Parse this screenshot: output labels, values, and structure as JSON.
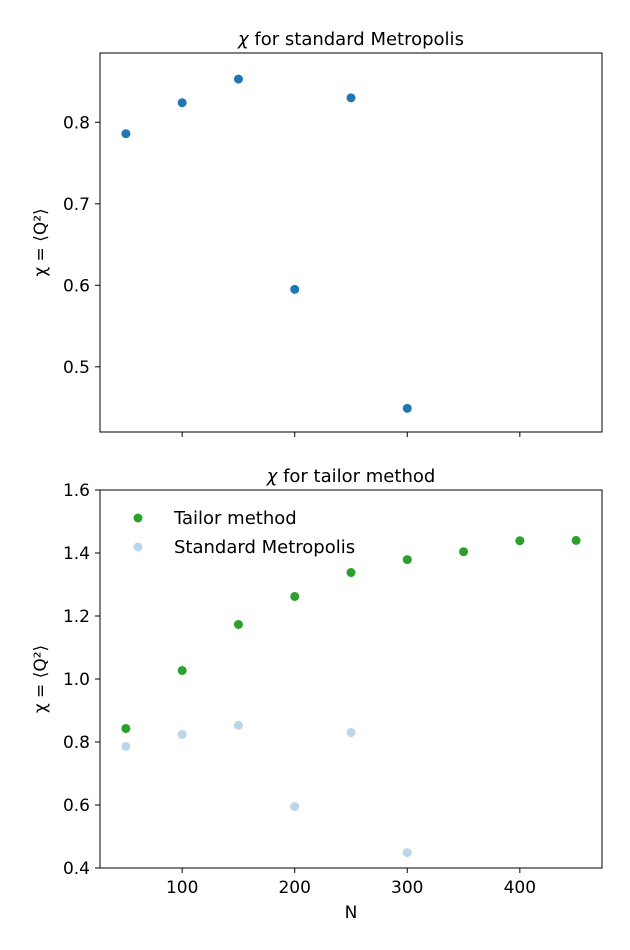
{
  "chart_data": [
    {
      "type": "scatter",
      "title": "χ for standard Metropolis",
      "title_italic_symbol": "χ",
      "title_rest": " for standard Metropolis",
      "xlabel": "",
      "ylabel": "χ = ⟨Q²⟩",
      "xlim": [
        27,
        473
      ],
      "ylim": [
        0.42,
        0.885
      ],
      "xticks": [
        100,
        200,
        300,
        400
      ],
      "xtick_labels_visible": false,
      "yticks": [
        0.5,
        0.6,
        0.7,
        0.8
      ],
      "ytick_labels": [
        "0.5",
        "0.6",
        "0.7",
        "0.8"
      ],
      "grid": false,
      "series": [
        {
          "color": "#1f77b4",
          "alpha": 1,
          "x": [
            50,
            100,
            150,
            200,
            250,
            300
          ],
          "y": [
            0.786,
            0.824,
            0.853,
            0.595,
            0.83,
            0.449
          ]
        }
      ]
    },
    {
      "type": "scatter",
      "title": "χ for tailor method",
      "title_italic_symbol": "χ",
      "title_rest": " for tailor method",
      "xlabel": "N",
      "ylabel": "χ = ⟨Q²⟩",
      "xlim": [
        27,
        473
      ],
      "ylim": [
        0.4,
        1.6
      ],
      "xticks": [
        100,
        200,
        300,
        400
      ],
      "xtick_labels": [
        "100",
        "200",
        "300",
        "400"
      ],
      "xtick_labels_visible": true,
      "yticks": [
        0.4,
        0.6,
        0.8,
        1.0,
        1.2,
        1.4,
        1.6
      ],
      "ytick_labels": [
        "0.4",
        "0.6",
        "0.8",
        "1.0",
        "1.2",
        "1.4",
        "1.6"
      ],
      "grid": false,
      "legend_position": "top-left",
      "series": [
        {
          "name": "Tailor method",
          "color": "#2ca02c",
          "alpha": 1,
          "x": [
            50,
            100,
            150,
            200,
            250,
            300,
            350,
            400,
            450
          ],
          "y": [
            0.843,
            1.027,
            1.173,
            1.262,
            1.338,
            1.379,
            1.404,
            1.439,
            1.44
          ]
        },
        {
          "name": "Standard Metropolis",
          "color": "#1f77b4",
          "alpha": 0.3,
          "x": [
            50,
            100,
            150,
            200,
            250,
            300
          ],
          "y": [
            0.786,
            0.824,
            0.853,
            0.595,
            0.83,
            0.449
          ]
        }
      ]
    }
  ]
}
